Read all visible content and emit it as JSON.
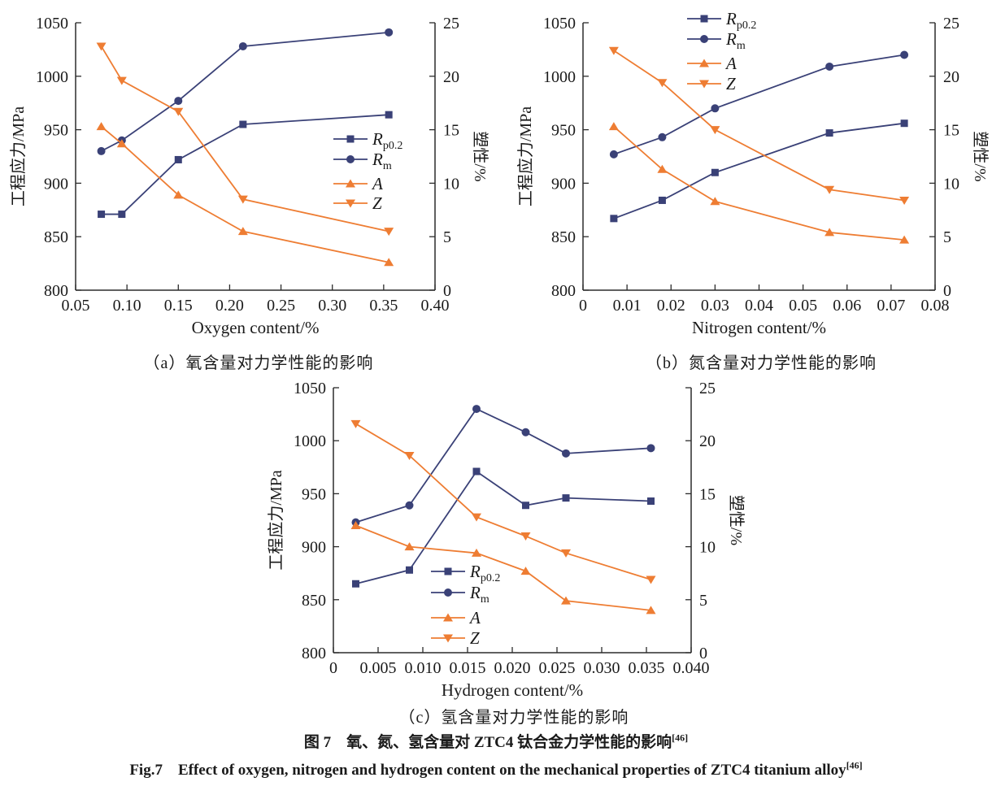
{
  "colors": {
    "navy": "#3a4177",
    "orange": "#ee7d33",
    "axis": "#2b2b2b",
    "text": "#1a1a1a"
  },
  "captions": {
    "cn": "图 7　氧、氮、氢含量对 ZTC4 钛合金力学性能的影响",
    "cn_ref": "[46]",
    "en": "Fig.7　Effect of oxygen, nitrogen and hydrogen content on the mechanical properties of ZTC4 titanium alloy",
    "en_ref": "[46]"
  },
  "chart_data": [
    {
      "id": "a",
      "type": "line",
      "subcaption": "（a）氧含量对力学性能的影响",
      "xlabel": "Oxygen content/%",
      "ylabel_left": "工程应力/MPa",
      "ylabel_right": "塑性/%",
      "xlim": [
        0.05,
        0.4
      ],
      "xticks": [
        "0.05",
        "0.10",
        "0.15",
        "0.20",
        "0.25",
        "0.30",
        "0.35",
        "0.40"
      ],
      "ylim_left": [
        800,
        1050
      ],
      "yticks_left": [
        "800",
        "850",
        "900",
        "950",
        "1000",
        "1050"
      ],
      "ylim_right": [
        0,
        25
      ],
      "yticks_right": [
        "0",
        "5",
        "10",
        "15",
        "20",
        "25"
      ],
      "x": [
        0.075,
        0.095,
        0.15,
        0.213,
        0.355
      ],
      "series": [
        {
          "name": "Rp0.2",
          "label_main": "R",
          "label_sub": "p0.2",
          "marker": "square",
          "color": "navy",
          "axis": "left",
          "values": [
            871,
            871,
            922,
            955,
            964
          ]
        },
        {
          "name": "Rm",
          "label_main": "R",
          "label_sub": "m",
          "marker": "circle",
          "color": "navy",
          "axis": "left",
          "values": [
            930,
            940,
            977,
            1028,
            1041
          ]
        },
        {
          "name": "A",
          "label_main": "A",
          "label_sub": "",
          "marker": "triangle-up",
          "color": "orange",
          "axis": "right",
          "values": [
            15.3,
            13.7,
            8.9,
            5.5,
            2.6
          ]
        },
        {
          "name": "Z",
          "label_main": "Z",
          "label_sub": "",
          "marker": "triangle-down",
          "color": "orange",
          "axis": "right",
          "values": [
            22.8,
            19.6,
            16.7,
            8.5,
            5.5
          ]
        }
      ],
      "legend_position": "inside-center-right"
    },
    {
      "id": "b",
      "type": "line",
      "subcaption": "（b）氮含量对力学性能的影响",
      "xlabel": "Nitrogen content/%",
      "ylabel_left": "工程应力/MPa",
      "ylabel_right": "塑性/%",
      "xlim": [
        0,
        0.08
      ],
      "xticks": [
        "0",
        "0.01",
        "0.02",
        "0.03",
        "0.04",
        "0.05",
        "0.06",
        "0.07",
        "0.08"
      ],
      "ylim_left": [
        800,
        1050
      ],
      "yticks_left": [
        "800",
        "850",
        "900",
        "950",
        "1000",
        "1050"
      ],
      "ylim_right": [
        0,
        25
      ],
      "yticks_right": [
        "0",
        "5",
        "10",
        "15",
        "20",
        "25"
      ],
      "x": [
        0.007,
        0.018,
        0.03,
        0.056,
        0.073
      ],
      "series": [
        {
          "name": "Rp0.2",
          "label_main": "R",
          "label_sub": "p0.2",
          "marker": "square",
          "color": "navy",
          "axis": "left",
          "values": [
            867,
            884,
            910,
            947,
            956
          ]
        },
        {
          "name": "Rm",
          "label_main": "R",
          "label_sub": "m",
          "marker": "circle",
          "color": "navy",
          "axis": "left",
          "values": [
            927,
            943,
            970,
            1009,
            1020
          ]
        },
        {
          "name": "A",
          "label_main": "A",
          "label_sub": "",
          "marker": "triangle-up",
          "color": "orange",
          "axis": "right",
          "values": [
            15.3,
            11.3,
            8.3,
            5.4,
            4.7
          ]
        },
        {
          "name": "Z",
          "label_main": "Z",
          "label_sub": "",
          "marker": "triangle-down",
          "color": "orange",
          "axis": "right",
          "values": [
            22.4,
            19.4,
            15.0,
            9.4,
            8.4
          ]
        }
      ],
      "legend_position": "inside-top-center"
    },
    {
      "id": "c",
      "type": "line",
      "subcaption": "（c）氢含量对力学性能的影响",
      "xlabel": "Hydrogen content/%",
      "ylabel_left": "工程应力/MPa",
      "ylabel_right": "塑性/%",
      "xlim": [
        0,
        0.04
      ],
      "xticks": [
        "0",
        "0.005",
        "0.010",
        "0.015",
        "0.020",
        "0.025",
        "0.030",
        "0.035",
        "0.040"
      ],
      "ylim_left": [
        800,
        1050
      ],
      "yticks_left": [
        "800",
        "850",
        "900",
        "950",
        "1000",
        "1050"
      ],
      "ylim_right": [
        0,
        25
      ],
      "yticks_right": [
        "0",
        "5",
        "10",
        "15",
        "20",
        "25"
      ],
      "x": [
        0.0025,
        0.0085,
        0.016,
        0.0215,
        0.026,
        0.0355
      ],
      "series": [
        {
          "name": "Rp0.2",
          "label_main": "R",
          "label_sub": "p0.2",
          "marker": "square",
          "color": "navy",
          "axis": "left",
          "values": [
            865,
            878,
            971,
            939,
            946,
            943
          ]
        },
        {
          "name": "Rm",
          "label_main": "R",
          "label_sub": "m",
          "marker": "circle",
          "color": "navy",
          "axis": "left",
          "values": [
            923,
            939,
            1030,
            1008,
            988,
            993
          ]
        },
        {
          "name": "A",
          "label_main": "A",
          "label_sub": "",
          "marker": "triangle-up",
          "color": "orange",
          "axis": "right",
          "values": [
            12.0,
            10.0,
            9.4,
            7.7,
            4.9,
            4.0
          ]
        },
        {
          "name": "Z",
          "label_main": "Z",
          "label_sub": "",
          "marker": "triangle-down",
          "color": "orange",
          "axis": "right",
          "values": [
            21.6,
            18.6,
            12.8,
            11.0,
            9.4,
            6.9
          ]
        }
      ],
      "legend_position": "inside-bottom-left"
    }
  ]
}
